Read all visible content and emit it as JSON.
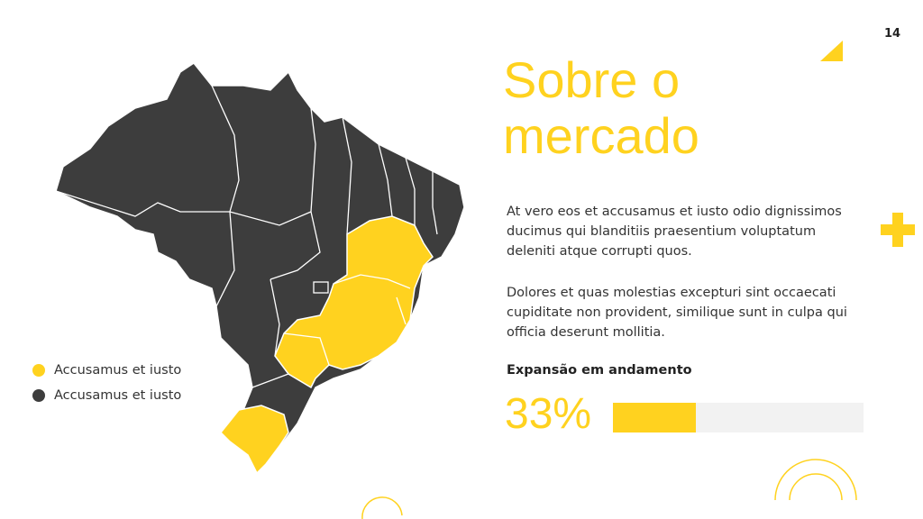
{
  "page_number": "14",
  "title": "Sobre o mercado",
  "paragraphs": [
    "At vero eos et accusamus et iusto odio dignissimos ducimus qui blanditiis praesentium voluptatum deleniti atque corrupti quos.",
    "Dolores et quas molestias excepturi sint occaecati cupiditate non provident, similique sunt in culpa qui officia deserunt mollitia."
  ],
  "legend": [
    {
      "label": "Accusamus et iusto",
      "color": "#FFD21F"
    },
    {
      "label": "Accusamus et iusto",
      "color": "#3d3d3d"
    }
  ],
  "progress": {
    "label": "Expansão em andamento",
    "value": 33,
    "value_label": "33%",
    "color": "#FFD21F"
  }
}
